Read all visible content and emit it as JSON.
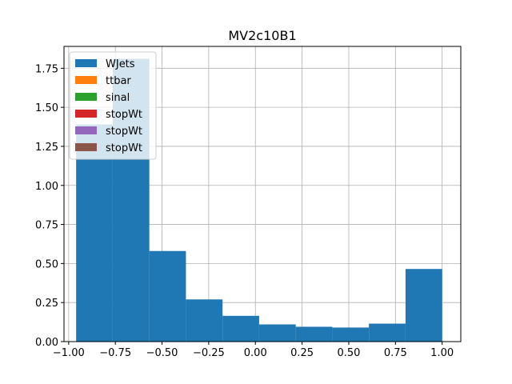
{
  "chart_data": {
    "type": "bar",
    "title": "MV2c10B1",
    "xlabel": "",
    "ylabel": "",
    "xlim": [
      -1.025,
      1.1
    ],
    "ylim": [
      0,
      1.89
    ],
    "xticks": [
      -1.0,
      -0.75,
      -0.5,
      -0.25,
      0.0,
      0.25,
      0.5,
      0.75,
      1.0
    ],
    "xtick_labels": [
      "−1.00",
      "−0.75",
      "−0.50",
      "−0.25",
      "0.00",
      "0.25",
      "0.50",
      "0.75",
      "1.00"
    ],
    "yticks": [
      0.0,
      0.25,
      0.5,
      0.75,
      1.0,
      1.25,
      1.5,
      1.75
    ],
    "ytick_labels": [
      "0.00",
      "0.25",
      "0.50",
      "0.75",
      "1.00",
      "1.25",
      "1.50",
      "1.75"
    ],
    "grid": true,
    "legend_position": "top-left",
    "series": [
      {
        "name": "WJets",
        "color": "#1f77b4",
        "bin_edges": [
          -0.96,
          -0.764,
          -0.568,
          -0.372,
          -0.176,
          0.02,
          0.216,
          0.412,
          0.608,
          0.804,
          1.0
        ],
        "values": [
          1.39,
          1.81,
          0.58,
          0.27,
          0.165,
          0.11,
          0.095,
          0.09,
          0.115,
          0.465
        ]
      },
      {
        "name": "ttbar",
        "color": "#ff7f0e",
        "values": []
      },
      {
        "name": "sinal",
        "color": "#2ca02c",
        "values": []
      },
      {
        "name": "stopWt",
        "color": "#d62728",
        "values": []
      },
      {
        "name": "stopWt",
        "color": "#9467bd",
        "values": []
      },
      {
        "name": "stopWt",
        "color": "#8c564b",
        "values": []
      }
    ]
  }
}
